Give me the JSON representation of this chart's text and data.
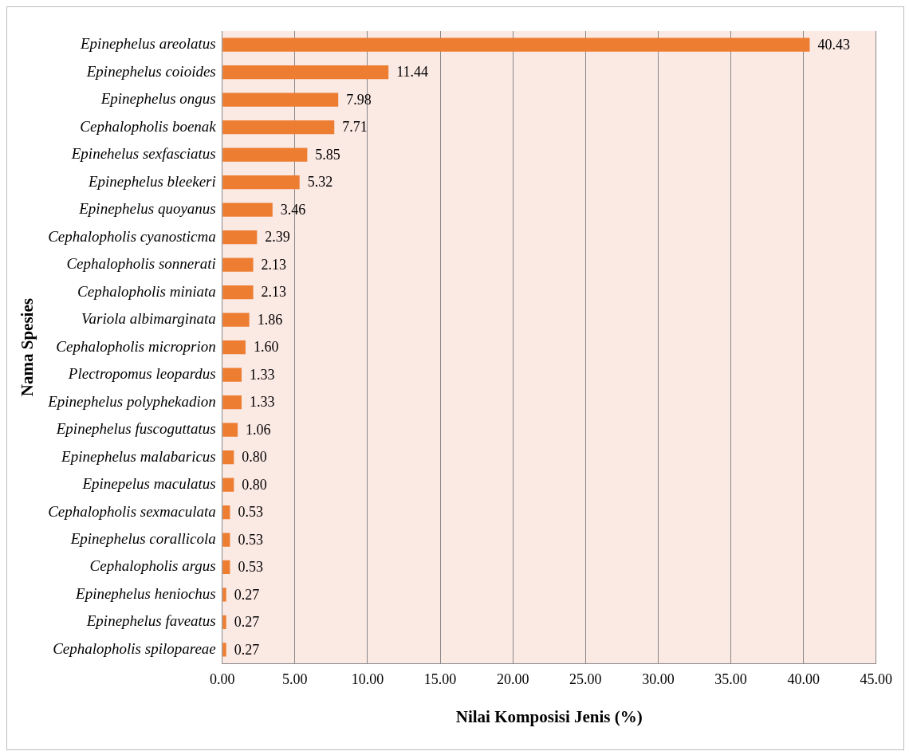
{
  "chart_data": {
    "type": "bar",
    "orientation": "horizontal",
    "xlabel": "Nilai Komposisi Jenis (%)",
    "ylabel": "Nama Spesies",
    "categories": [
      "Epinephelus areolatus",
      "Epinephelus coioides",
      "Epinephelus ongus",
      "Cephalopholis boenak",
      "Epinehelus sexfasciatus",
      "Epinephelus bleekeri",
      "Epinephelus quoyanus",
      "Cephalopholis cyanosticma",
      "Cephalopholis sonnerati",
      "Cephalopholis miniata",
      "Variola albimarginata",
      "Cephalopholis microprion",
      "Plectropomus leopardus",
      "Epinephelus polyphekadion",
      "Epinephelus fuscoguttatus",
      "Epinephelus malabaricus",
      "Epinepelus maculatus",
      "Cephalopholis sexmaculata",
      "Epinephelus corallicola",
      "Cephalopholis argus",
      "Epinephelus heniochus",
      "Epinephelus faveatus",
      "Cephalopholis spilopareae"
    ],
    "values": [
      40.43,
      11.44,
      7.98,
      7.71,
      5.85,
      5.32,
      3.46,
      2.39,
      2.13,
      2.13,
      1.86,
      1.6,
      1.33,
      1.33,
      1.06,
      0.8,
      0.8,
      0.53,
      0.53,
      0.53,
      0.27,
      0.27,
      0.27
    ],
    "value_labels": [
      "40.43",
      "11.44",
      "7.98",
      "7.71",
      "5.85",
      "5.32",
      "3.46",
      "2.39",
      "2.13",
      "2.13",
      "1.86",
      "1.60",
      "1.33",
      "1.33",
      "1.06",
      "0.80",
      "0.80",
      "0.53",
      "0.53",
      "0.53",
      "0.27",
      "0.27",
      "0.27"
    ],
    "color": "#ed7d31",
    "xlim": [
      0,
      45
    ],
    "xticks": [
      {
        "value": 0,
        "label": "0.00"
      },
      {
        "value": 5,
        "label": "5.00"
      },
      {
        "value": 10,
        "label": "10.00"
      },
      {
        "value": 15,
        "label": "15.00"
      },
      {
        "value": 20,
        "label": "20.00"
      },
      {
        "value": 25,
        "label": "25.00"
      },
      {
        "value": 30,
        "label": "30.00"
      },
      {
        "value": 35,
        "label": "35.00"
      },
      {
        "value": 40,
        "label": "40.00"
      },
      {
        "value": 45,
        "label": "45.00"
      }
    ],
    "grid": "x",
    "legend": false
  }
}
